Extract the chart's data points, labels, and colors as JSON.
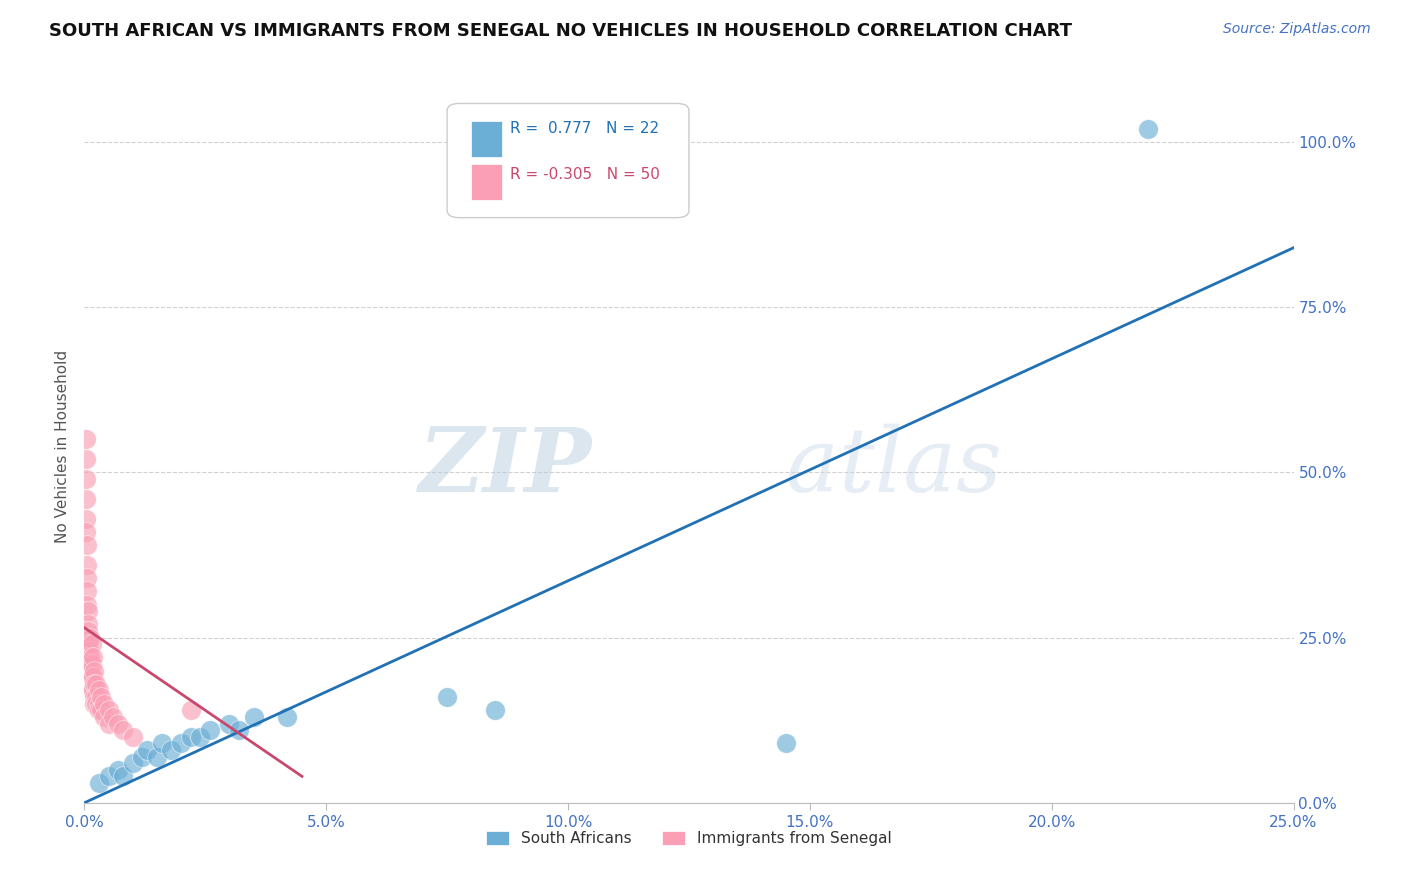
{
  "title": "SOUTH AFRICAN VS IMMIGRANTS FROM SENEGAL NO VEHICLES IN HOUSEHOLD CORRELATION CHART",
  "source": "Source: ZipAtlas.com",
  "ylabel": "No Vehicles in Household",
  "ytick_labels": [
    "0.0%",
    "25.0%",
    "50.0%",
    "75.0%",
    "100.0%"
  ],
  "ytick_values": [
    0,
    25,
    50,
    75,
    100
  ],
  "xtick_labels": [
    "0.0%",
    "5.0%",
    "10.0%",
    "15.0%",
    "20.0%",
    "25.0%"
  ],
  "xtick_values": [
    0,
    5,
    10,
    15,
    20,
    25
  ],
  "xlim": [
    0,
    25
  ],
  "ylim": [
    0,
    108
  ],
  "legend_blue_r": "0.777",
  "legend_blue_n": "22",
  "legend_pink_r": "-0.305",
  "legend_pink_n": "50",
  "blue_color": "#6baed6",
  "pink_color": "#fa9fb5",
  "blue_line_color": "#2171b5",
  "pink_line_color": "#c9496e",
  "watermark_zip": "ZIP",
  "watermark_atlas": "atlas",
  "blue_scatter": [
    [
      0.3,
      3
    ],
    [
      0.5,
      4
    ],
    [
      0.7,
      5
    ],
    [
      0.8,
      4
    ],
    [
      1.0,
      6
    ],
    [
      1.2,
      7
    ],
    [
      1.3,
      8
    ],
    [
      1.5,
      7
    ],
    [
      1.6,
      9
    ],
    [
      1.8,
      8
    ],
    [
      2.0,
      9
    ],
    [
      2.2,
      10
    ],
    [
      2.4,
      10
    ],
    [
      2.6,
      11
    ],
    [
      3.0,
      12
    ],
    [
      3.2,
      11
    ],
    [
      3.5,
      13
    ],
    [
      4.2,
      13
    ],
    [
      7.5,
      16
    ],
    [
      8.5,
      14
    ],
    [
      14.5,
      9
    ],
    [
      22.0,
      102
    ]
  ],
  "pink_scatter": [
    [
      0.03,
      55
    ],
    [
      0.03,
      52
    ],
    [
      0.03,
      49
    ],
    [
      0.04,
      46
    ],
    [
      0.04,
      43
    ],
    [
      0.04,
      41
    ],
    [
      0.05,
      39
    ],
    [
      0.05,
      36
    ],
    [
      0.05,
      34
    ],
    [
      0.06,
      32
    ],
    [
      0.06,
      30
    ],
    [
      0.07,
      29
    ],
    [
      0.07,
      27
    ],
    [
      0.08,
      26
    ],
    [
      0.08,
      24
    ],
    [
      0.09,
      23
    ],
    [
      0.09,
      22
    ],
    [
      0.1,
      21
    ],
    [
      0.1,
      20
    ],
    [
      0.12,
      25
    ],
    [
      0.12,
      22
    ],
    [
      0.12,
      20
    ],
    [
      0.15,
      24
    ],
    [
      0.15,
      21
    ],
    [
      0.15,
      19
    ],
    [
      0.15,
      17
    ],
    [
      0.18,
      22
    ],
    [
      0.18,
      19
    ],
    [
      0.18,
      17
    ],
    [
      0.2,
      20
    ],
    [
      0.2,
      18
    ],
    [
      0.2,
      16
    ],
    [
      0.2,
      15
    ],
    [
      0.25,
      18
    ],
    [
      0.25,
      16
    ],
    [
      0.25,
      15
    ],
    [
      0.3,
      17
    ],
    [
      0.3,
      15
    ],
    [
      0.3,
      14
    ],
    [
      0.35,
      16
    ],
    [
      0.35,
      14
    ],
    [
      0.4,
      15
    ],
    [
      0.4,
      13
    ],
    [
      0.5,
      14
    ],
    [
      0.5,
      12
    ],
    [
      0.6,
      13
    ],
    [
      0.7,
      12
    ],
    [
      0.8,
      11
    ],
    [
      1.0,
      10
    ],
    [
      2.2,
      14
    ]
  ],
  "blue_line_x": [
    0,
    25
  ],
  "blue_line_y": [
    0,
    84
  ],
  "pink_line_x": [
    0.0,
    4.5
  ],
  "pink_line_y": [
    26.5,
    4.0
  ]
}
